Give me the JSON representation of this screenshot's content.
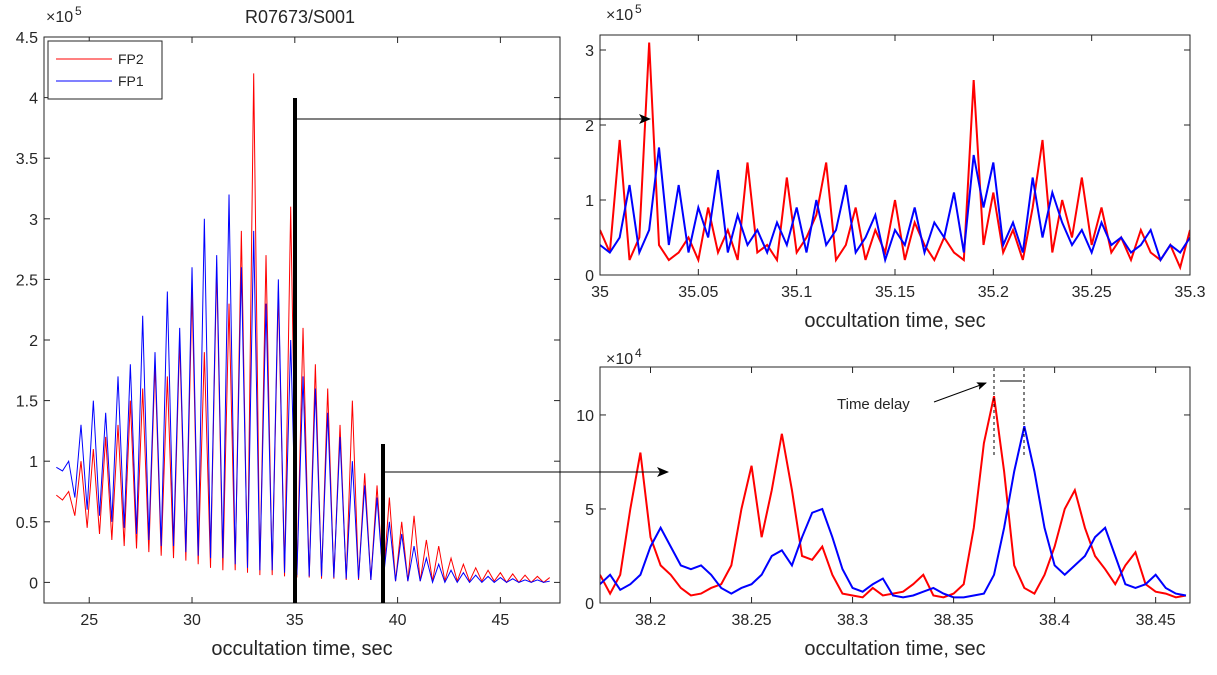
{
  "chart_data": [
    {
      "type": "line",
      "title": "R07673/S001",
      "xlabel": "occultation time, sec",
      "y_scale": {
        "base": "×10",
        "exponent": "5"
      },
      "xlim": [
        22.8,
        47.9
      ],
      "xticks": [
        25,
        30,
        35,
        40,
        45
      ],
      "ylim": [
        -0.17,
        4.5
      ],
      "yticks": [
        0,
        0.5,
        1,
        1.5,
        2,
        2.5,
        3,
        3.5,
        4,
        4.5
      ],
      "legend": "upper left",
      "x": [
        23.4,
        23.7,
        24.0,
        24.3,
        24.6,
        24.9,
        25.2,
        25.5,
        25.8,
        26.1,
        26.4,
        26.7,
        27.0,
        27.3,
        27.6,
        27.9,
        28.2,
        28.5,
        28.8,
        29.1,
        29.4,
        29.7,
        30.0,
        30.3,
        30.6,
        30.9,
        31.2,
        31.5,
        31.8,
        32.1,
        32.4,
        32.7,
        33.0,
        33.3,
        33.6,
        33.9,
        34.2,
        34.5,
        34.8,
        35.1,
        35.4,
        35.7,
        36.0,
        36.3,
        36.6,
        36.9,
        37.2,
        37.5,
        37.8,
        38.1,
        38.4,
        38.7,
        39.0,
        39.3,
        39.6,
        39.9,
        40.2,
        40.5,
        40.8,
        41.1,
        41.4,
        41.7,
        42.0,
        42.3,
        42.6,
        42.9,
        43.2,
        43.5,
        43.8,
        44.1,
        44.4,
        44.7,
        45.0,
        45.3,
        45.6,
        45.9,
        46.2,
        46.5,
        46.8,
        47.1,
        47.4
      ],
      "series": [
        {
          "name": "FP2",
          "color": "#ff0000",
          "values": [
            0.72,
            0.68,
            0.75,
            0.55,
            1.0,
            0.45,
            1.1,
            0.4,
            1.2,
            0.35,
            1.3,
            0.3,
            1.5,
            0.28,
            1.6,
            0.25,
            1.8,
            0.22,
            1.7,
            0.2,
            2.0,
            0.18,
            2.4,
            0.15,
            1.9,
            0.12,
            2.6,
            0.1,
            2.3,
            0.1,
            2.9,
            0.08,
            4.2,
            0.06,
            2.7,
            0.06,
            2.4,
            0.05,
            3.1,
            0.04,
            2.1,
            0.04,
            1.8,
            0.03,
            1.6,
            0.03,
            1.3,
            0.02,
            1.5,
            0.02,
            0.9,
            0.02,
            0.8,
            0.01,
            0.7,
            0.01,
            0.5,
            0.01,
            0.55,
            0.01,
            0.35,
            0.01,
            0.3,
            0.01,
            0.2,
            0.01,
            0.15,
            0.01,
            0.12,
            0.01,
            0.1,
            0.01,
            0.08,
            0.0,
            0.07,
            0.0,
            0.06,
            0.0,
            0.05,
            0.0,
            0.04
          ]
        },
        {
          "name": "FP1",
          "color": "#0000ff",
          "values": [
            0.95,
            0.92,
            1.0,
            0.7,
            1.3,
            0.6,
            1.5,
            0.55,
            1.4,
            0.5,
            1.7,
            0.45,
            1.8,
            0.4,
            2.2,
            0.35,
            1.9,
            0.3,
            2.4,
            0.3,
            2.1,
            0.25,
            2.6,
            0.22,
            3.0,
            0.2,
            2.7,
            0.2,
            3.2,
            0.15,
            2.6,
            0.12,
            2.9,
            0.1,
            2.3,
            0.1,
            2.5,
            0.08,
            2.0,
            0.06,
            1.7,
            0.05,
            1.6,
            0.05,
            1.4,
            0.04,
            1.2,
            0.03,
            1.0,
            0.03,
            0.8,
            0.02,
            0.7,
            0.02,
            0.5,
            0.01,
            0.4,
            0.01,
            0.3,
            0.01,
            0.2,
            0.0,
            0.15,
            0.0,
            0.1,
            0.0,
            0.08,
            0.0,
            0.06,
            0.0,
            0.05,
            0.0,
            0.04,
            0.0,
            0.03,
            0.0,
            0.02,
            0.0,
            0.02,
            0.0,
            0.01
          ]
        }
      ]
    },
    {
      "type": "line",
      "xlabel": "occultation time, sec",
      "y_scale": {
        "base": "×10",
        "exponent": "5"
      },
      "xlim": [
        35,
        35.3
      ],
      "xticks": [
        35,
        35.05,
        35.1,
        35.15,
        35.2,
        35.25,
        35.3
      ],
      "ylim": [
        0,
        3.2
      ],
      "yticks": [
        0,
        1,
        2,
        3
      ],
      "x": [
        35.0,
        35.005,
        35.01,
        35.015,
        35.02,
        35.025,
        35.03,
        35.035,
        35.04,
        35.045,
        35.05,
        35.055,
        35.06,
        35.065,
        35.07,
        35.075,
        35.08,
        35.085,
        35.09,
        35.095,
        35.1,
        35.105,
        35.11,
        35.115,
        35.12,
        35.125,
        35.13,
        35.135,
        35.14,
        35.145,
        35.15,
        35.155,
        35.16,
        35.165,
        35.17,
        35.175,
        35.18,
        35.185,
        35.19,
        35.195,
        35.2,
        35.205,
        35.21,
        35.215,
        35.22,
        35.225,
        35.23,
        35.235,
        35.24,
        35.245,
        35.25,
        35.255,
        35.26,
        35.265,
        35.27,
        35.275,
        35.28,
        35.285,
        35.29,
        35.295,
        35.3
      ],
      "series": [
        {
          "name": "FP2",
          "color": "#ff0000",
          "values": [
            0.6,
            0.3,
            1.8,
            0.2,
            0.5,
            3.1,
            0.4,
            0.2,
            0.3,
            0.5,
            0.2,
            0.9,
            0.3,
            0.6,
            0.2,
            1.5,
            0.3,
            0.4,
            0.2,
            1.3,
            0.3,
            0.5,
            0.8,
            1.5,
            0.2,
            0.4,
            0.9,
            0.2,
            0.6,
            0.3,
            1.0,
            0.2,
            0.7,
            0.4,
            0.2,
            0.5,
            0.3,
            0.2,
            2.6,
            0.4,
            1.1,
            0.3,
            0.6,
            0.2,
            0.9,
            1.8,
            0.3,
            1.0,
            0.5,
            1.3,
            0.4,
            0.9,
            0.3,
            0.5,
            0.2,
            0.6,
            0.3,
            0.2,
            0.4,
            0.1,
            0.6
          ]
        },
        {
          "name": "FP1",
          "color": "#0000ff",
          "values": [
            0.4,
            0.3,
            0.5,
            1.2,
            0.3,
            0.6,
            1.7,
            0.4,
            1.2,
            0.3,
            0.9,
            0.5,
            1.4,
            0.3,
            0.8,
            0.4,
            0.6,
            0.3,
            0.7,
            0.4,
            0.9,
            0.3,
            1.0,
            0.4,
            0.6,
            1.2,
            0.3,
            0.5,
            0.8,
            0.2,
            0.6,
            0.4,
            0.9,
            0.3,
            0.7,
            0.5,
            1.1,
            0.3,
            1.6,
            0.9,
            1.5,
            0.4,
            0.7,
            0.3,
            1.3,
            0.5,
            1.1,
            0.7,
            0.4,
            0.6,
            0.3,
            0.7,
            0.4,
            0.5,
            0.3,
            0.4,
            0.6,
            0.2,
            0.4,
            0.3,
            0.5
          ]
        }
      ]
    },
    {
      "type": "line",
      "xlabel": "occultation time, sec",
      "annotation": "Time delay",
      "y_scale": {
        "base": "×10",
        "exponent": "4"
      },
      "xlim": [
        38.175,
        38.467
      ],
      "xticks": [
        38.2,
        38.25,
        38.3,
        38.35,
        38.4,
        38.45
      ],
      "ylim": [
        0,
        12.55
      ],
      "yticks": [
        0,
        5,
        10
      ],
      "x": [
        38.175,
        38.18,
        38.185,
        38.19,
        38.195,
        38.2,
        38.205,
        38.21,
        38.215,
        38.22,
        38.225,
        38.23,
        38.235,
        38.24,
        38.245,
        38.25,
        38.255,
        38.26,
        38.265,
        38.27,
        38.275,
        38.28,
        38.285,
        38.29,
        38.295,
        38.3,
        38.305,
        38.31,
        38.315,
        38.32,
        38.325,
        38.33,
        38.335,
        38.34,
        38.345,
        38.35,
        38.355,
        38.36,
        38.365,
        38.37,
        38.375,
        38.38,
        38.385,
        38.39,
        38.395,
        38.4,
        38.405,
        38.41,
        38.415,
        38.42,
        38.425,
        38.43,
        38.435,
        38.44,
        38.445,
        38.45,
        38.455,
        38.46,
        38.465
      ],
      "series": [
        {
          "name": "FP2",
          "color": "#ff0000",
          "values": [
            1.5,
            0.5,
            1.5,
            5.0,
            8.0,
            3.5,
            2.0,
            1.5,
            0.8,
            0.4,
            0.5,
            0.8,
            1.0,
            2.0,
            5.0,
            7.3,
            3.5,
            6.0,
            9.0,
            6.0,
            2.5,
            2.3,
            3.0,
            1.5,
            0.5,
            0.4,
            0.3,
            0.8,
            0.4,
            0.5,
            0.6,
            1.0,
            1.5,
            0.4,
            0.3,
            0.5,
            1.0,
            4.0,
            8.5,
            11.0,
            7.0,
            2.0,
            0.8,
            0.5,
            1.5,
            3.0,
            5.0,
            6.0,
            4.0,
            2.5,
            1.8,
            1.0,
            2.0,
            2.7,
            1.0,
            0.6,
            0.5,
            0.3,
            0.4
          ]
        },
        {
          "name": "FP1",
          "color": "#0000ff",
          "values": [
            1.0,
            1.5,
            0.7,
            1.0,
            1.5,
            3.0,
            4.0,
            3.0,
            2.0,
            1.8,
            2.0,
            1.5,
            0.8,
            0.5,
            0.8,
            1.0,
            1.5,
            2.5,
            2.8,
            2.0,
            3.5,
            4.8,
            5.0,
            3.5,
            1.8,
            0.8,
            0.6,
            1.0,
            1.3,
            0.4,
            0.3,
            0.4,
            0.6,
            0.8,
            0.5,
            0.3,
            0.3,
            0.4,
            0.5,
            1.5,
            4.0,
            7.0,
            9.4,
            7.0,
            4.0,
            2.0,
            1.5,
            2.0,
            2.5,
            3.5,
            4.0,
            2.5,
            1.0,
            0.8,
            1.0,
            1.5,
            0.8,
            0.5,
            0.4
          ]
        }
      ]
    }
  ]
}
